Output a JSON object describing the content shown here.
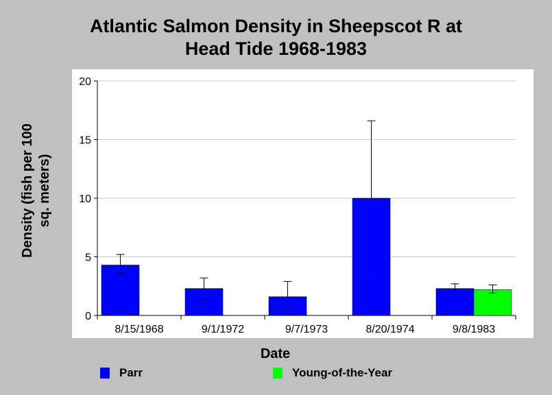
{
  "chart_data": {
    "type": "bar",
    "title_lines": [
      "Atlantic Salmon Density in Sheepscot R at",
      "Head Tide 1968-1983"
    ],
    "xlabel": "Date",
    "ylabel_lines": [
      "Density (fish per 100",
      "sq. meters)"
    ],
    "categories": [
      "8/15/1968",
      "9/1/1972",
      "9/7/1973",
      "8/20/1974",
      "9/8/1983"
    ],
    "ylim": [
      0,
      20
    ],
    "yticks": [
      0,
      5,
      10,
      15,
      20
    ],
    "grid": true,
    "legend_position": "bottom",
    "series": [
      {
        "name": "Parr",
        "color": "#0000ff",
        "values": [
          4.3,
          2.3,
          1.6,
          10.0,
          2.3
        ],
        "err_low": [
          3.6,
          1.4,
          0.7,
          3.3,
          2.0
        ],
        "err_high": [
          5.2,
          3.2,
          2.9,
          16.6,
          2.7
        ]
      },
      {
        "name": "Young-of-the-Year",
        "color": "#00ff00",
        "values": [
          null,
          null,
          null,
          null,
          2.2
        ],
        "err_low": [
          null,
          null,
          null,
          null,
          1.9
        ],
        "err_high": [
          null,
          null,
          null,
          null,
          2.6
        ]
      }
    ]
  }
}
